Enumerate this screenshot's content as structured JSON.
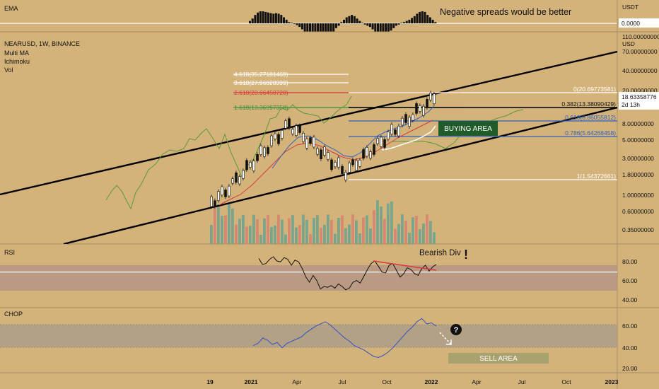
{
  "colors": {
    "background": "#d4b37b",
    "rsi_band": "#b39286",
    "chop_band": "#a89b8a",
    "buying_area": "#1f5c2a",
    "sell_area": "#a8a26e",
    "bull_volume": "#6ea38e",
    "bear_volume": "#d8826f",
    "fib_red": "#d63a3a",
    "fib_green": "#3e8e3e",
    "fib_blue": "#3060c0",
    "channel": "#000000"
  },
  "ema": {
    "title": "EMA",
    "value": "0.0000",
    "annotation": "Negative spreads would be better"
  },
  "main": {
    "title": "NEARUSD, 1W, BINANCE",
    "indicators": [
      "Multi MA",
      "Ichimoku",
      "Vol"
    ],
    "price_label": "18.63358776",
    "time_label": "2d 13h",
    "scale_top_unit": "USDT",
    "scale_unit": "USD",
    "price_ticks": [
      "110.00000000",
      "70.00000000",
      "40.00000000",
      "20.00000000",
      "8.00000000",
      "5.00000000",
      "3.00000000",
      "1.80000000",
      "1.00000000",
      "0.60000000",
      "0.35000000"
    ],
    "fib_extensions": [
      {
        "label": "4.618(35.27181469)",
        "color": "white"
      },
      {
        "label": "3.618(27.96820099)",
        "color": "white"
      },
      {
        "label": "2.618(20.66458728)",
        "color": "red"
      },
      {
        "label": "1.618(13.36097358)",
        "color": "green"
      }
    ],
    "fib_retracements": [
      {
        "label": "0(20.69773581)",
        "color": "white"
      },
      {
        "label": "0.382(13.38090429)",
        "color": "black"
      },
      {
        "label": "0.618(8.86055812)",
        "color": "blue"
      },
      {
        "label": "0.786(5.64268458)",
        "color": "blue"
      },
      {
        "label": "1(1.54372661)",
        "color": "white"
      }
    ],
    "buying_area": "BUYING AREA"
  },
  "rsi": {
    "title": "RSI",
    "annotation": "Bearish Div",
    "exclamation": "!",
    "ticks": [
      "80.00",
      "60.00",
      "40.00"
    ],
    "band": [
      40,
      70
    ],
    "level_line": 62
  },
  "chop": {
    "title": "CHOP",
    "question": "?",
    "sell_area": "SELL AREA",
    "ticks": [
      "60.00",
      "40.00",
      "20.00"
    ],
    "band": [
      38.2,
      61.8
    ]
  },
  "time_axis": [
    "19",
    "2021",
    "Apr",
    "Jul",
    "Oct",
    "2022",
    "Apr",
    "Jul",
    "Oct",
    "2023"
  ],
  "chart_data": [
    {
      "type": "bar",
      "name": "EMA",
      "values": [
        0.2,
        0.4,
        0.7,
        0.9,
        1.0,
        1.0,
        0.95,
        0.9,
        0.85,
        0.8,
        0.85,
        0.8,
        0.7,
        0.5,
        0.3,
        0.1,
        0.05,
        -0.05,
        -0.15,
        -0.3,
        -0.5,
        -0.8,
        -0.9,
        -1.0,
        -1.0,
        -0.95,
        -0.9,
        -0.85,
        -0.9,
        -0.95,
        -1.0,
        -0.9,
        -0.7,
        -0.4,
        -0.2,
        0.1,
        0.3,
        0.5,
        0.6,
        0.7,
        0.6,
        0.4,
        0.2,
        0.05,
        -0.1,
        -0.2,
        -0.3,
        -0.5,
        -0.7,
        -0.85,
        -0.95,
        -1.0,
        -0.9,
        -0.8,
        -0.6,
        -0.4,
        -0.2,
        -0.1,
        0.05,
        0.1,
        0.2,
        0.3,
        0.45,
        0.6,
        0.8,
        0.95,
        1.0,
        0.95,
        0.7,
        0.5,
        0.3,
        0.1
      ]
    },
    {
      "type": "line",
      "name": "RSI",
      "values": [
        78,
        71,
        72,
        77,
        80,
        75,
        74,
        79,
        77,
        70,
        76,
        74,
        66,
        56,
        50,
        58,
        52,
        42,
        45,
        44,
        46,
        43,
        48,
        45,
        41,
        43,
        50,
        52,
        49,
        57,
        65,
        72,
        75,
        69,
        62,
        61,
        70,
        72,
        64,
        56,
        60,
        67,
        65,
        60,
        58,
        66,
        70,
        63,
        68,
        71
      ],
      "ylim": [
        20,
        95
      ]
    },
    {
      "type": "line",
      "name": "CHOP",
      "values": [
        40,
        42,
        47,
        45,
        41,
        43,
        38,
        42,
        44,
        46,
        48,
        52,
        55,
        58,
        60,
        62,
        59,
        55,
        51,
        47,
        44,
        40,
        38,
        36,
        33,
        30,
        29,
        31,
        34,
        38,
        43,
        48,
        53,
        57,
        62,
        65,
        60,
        61,
        58
      ],
      "ylim": [
        15,
        75
      ]
    }
  ]
}
